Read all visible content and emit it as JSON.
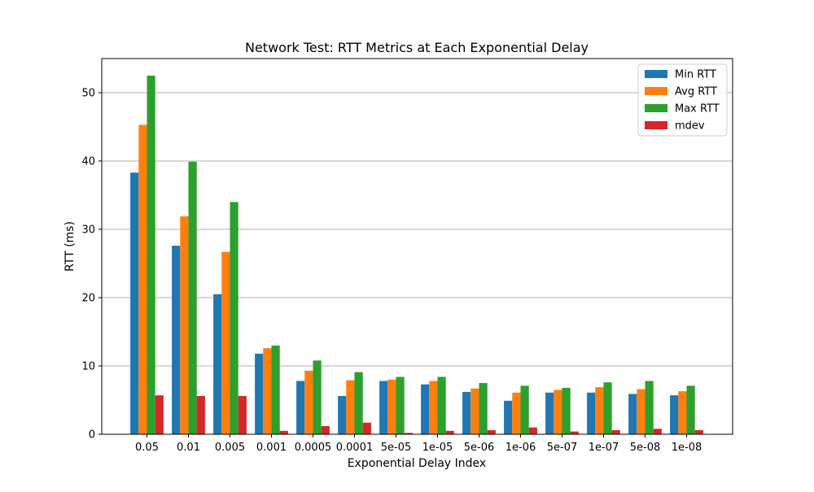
{
  "chart_data": {
    "type": "bar",
    "title": "Network Test: RTT Metrics at Each Exponential Delay",
    "xlabel": "Exponential Delay Index",
    "ylabel": "RTT (ms)",
    "ylim": [
      0,
      55
    ],
    "yticks": [
      0,
      10,
      20,
      30,
      40,
      50
    ],
    "grid": "y",
    "legend_position": "top-right",
    "categories": [
      "0.05",
      "0.01",
      "0.005",
      "0.001",
      "0.0005",
      "0.0001",
      "5e-05",
      "1e-05",
      "5e-06",
      "1e-06",
      "5e-07",
      "1e-07",
      "5e-08",
      "1e-08"
    ],
    "series": [
      {
        "name": "Min RTT",
        "color": "#1f77b4",
        "values": [
          38.3,
          27.6,
          20.5,
          11.8,
          7.8,
          5.6,
          7.8,
          7.3,
          6.2,
          4.9,
          6.1,
          6.1,
          5.9,
          5.7
        ]
      },
      {
        "name": "Avg RTT",
        "color": "#ff7f0e",
        "values": [
          45.3,
          31.9,
          26.7,
          12.6,
          9.3,
          7.9,
          8.0,
          7.8,
          6.7,
          6.1,
          6.5,
          6.9,
          6.6,
          6.3
        ]
      },
      {
        "name": "Max RTT",
        "color": "#2ca02c",
        "values": [
          52.5,
          39.9,
          34.0,
          13.0,
          10.8,
          9.1,
          8.4,
          8.4,
          7.5,
          7.1,
          6.8,
          7.6,
          7.8,
          7.1
        ]
      },
      {
        "name": "mdev",
        "color": "#d62728",
        "values": [
          5.7,
          5.6,
          5.6,
          0.5,
          1.2,
          1.7,
          0.2,
          0.5,
          0.6,
          1.0,
          0.4,
          0.6,
          0.8,
          0.6
        ]
      }
    ]
  }
}
